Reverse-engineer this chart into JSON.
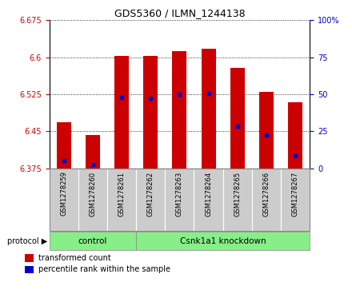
{
  "title": "GDS5360 / ILMN_1244138",
  "samples": [
    "GSM1278259",
    "GSM1278260",
    "GSM1278261",
    "GSM1278262",
    "GSM1278263",
    "GSM1278264",
    "GSM1278265",
    "GSM1278266",
    "GSM1278267"
  ],
  "bar_tops": [
    6.468,
    6.443,
    6.603,
    6.603,
    6.613,
    6.618,
    6.578,
    6.53,
    6.508
  ],
  "bar_base": 6.375,
  "blue_dot_values": [
    6.39,
    6.382,
    6.518,
    6.517,
    6.525,
    6.527,
    6.46,
    6.443,
    6.4
  ],
  "ylim": [
    6.375,
    6.675
  ],
  "yticks_left": [
    6.375,
    6.45,
    6.525,
    6.6,
    6.675
  ],
  "yticks_right": [
    0,
    25,
    50,
    75,
    100
  ],
  "bar_color": "#cc0000",
  "blue_color": "#0000cc",
  "n_control": 3,
  "n_knockdown": 6,
  "control_label": "control",
  "knockdown_label": "Csnk1a1 knockdown",
  "protocol_label": "protocol",
  "legend_bar_label": "transformed count",
  "legend_dot_label": "percentile rank within the sample",
  "group_bg_color": "#88ee88",
  "tick_bg_color": "#cccccc",
  "bar_width": 0.5,
  "title_fontsize": 9,
  "tick_fontsize": 7,
  "label_fontsize": 7.5
}
